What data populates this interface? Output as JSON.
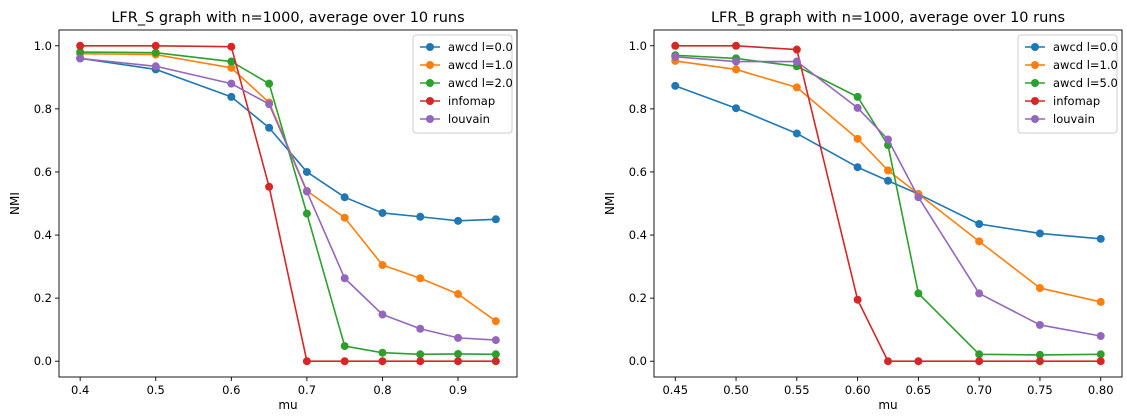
{
  "colors": {
    "series": [
      "#1f77b4",
      "#ff7f0e",
      "#2ca02c",
      "#d62728",
      "#9467bd"
    ],
    "axis": "#000000",
    "legend_border": "#cccccc"
  },
  "chart_data": [
    {
      "type": "line",
      "title": "LFR_S graph with n=1000, average over 10 runs",
      "xlabel": "mu",
      "ylabel": "NMI",
      "xlim": [
        0.372,
        0.978
      ],
      "ylim": [
        -0.05,
        1.05
      ],
      "xticks": [
        0.4,
        0.5,
        0.6,
        0.7,
        0.8,
        0.9
      ],
      "xtick_labels": [
        "0.4",
        "0.5",
        "0.6",
        "0.7",
        "0.8",
        "0.9"
      ],
      "yticks": [
        0.0,
        0.2,
        0.4,
        0.6,
        0.8,
        1.0
      ],
      "ytick_labels": [
        "0.0",
        "0.2",
        "0.4",
        "0.6",
        "0.8",
        "1.0"
      ],
      "grid": false,
      "legend_position": "top-right",
      "x": [
        0.4,
        0.5,
        0.6,
        0.65,
        0.7,
        0.75,
        0.8,
        0.85,
        0.9,
        0.95
      ],
      "series": [
        {
          "name": "awcd l=0.0",
          "values": [
            0.96,
            0.925,
            0.838,
            0.74,
            0.6,
            0.52,
            0.47,
            0.458,
            0.445,
            0.45
          ]
        },
        {
          "name": "awcd l=1.0",
          "values": [
            0.975,
            0.972,
            0.93,
            0.82,
            0.54,
            0.455,
            0.305,
            0.263,
            0.213,
            0.127
          ]
        },
        {
          "name": "awcd l=2.0",
          "values": [
            0.98,
            0.978,
            0.95,
            0.88,
            0.468,
            0.048,
            0.027,
            0.022,
            0.023,
            0.022
          ]
        },
        {
          "name": "infomap",
          "values": [
            1.0,
            1.0,
            0.997,
            0.553,
            0.0,
            0.0,
            0.0,
            0.0,
            0.0,
            0.0
          ]
        },
        {
          "name": "louvain",
          "values": [
            0.96,
            0.935,
            0.88,
            0.815,
            0.538,
            0.263,
            0.148,
            0.103,
            0.074,
            0.067
          ]
        }
      ]
    },
    {
      "type": "line",
      "title": "LFR_B graph with n=1000, average over 10 runs",
      "xlabel": "mu",
      "ylabel": "NMI",
      "xlim": [
        0.4325,
        0.8175
      ],
      "ylim": [
        -0.05,
        1.05
      ],
      "xticks": [
        0.45,
        0.5,
        0.55,
        0.6,
        0.65,
        0.7,
        0.75,
        0.8
      ],
      "xtick_labels": [
        "0.45",
        "0.50",
        "0.55",
        "0.60",
        "0.65",
        "0.70",
        "0.75",
        "0.80"
      ],
      "yticks": [
        0.0,
        0.2,
        0.4,
        0.6,
        0.8,
        1.0
      ],
      "ytick_labels": [
        "0.0",
        "0.2",
        "0.4",
        "0.6",
        "0.8",
        "1.0"
      ],
      "grid": false,
      "legend_position": "top-right",
      "x": [
        0.45,
        0.5,
        0.55,
        0.6,
        0.625,
        0.65,
        0.7,
        0.75,
        0.8
      ],
      "series": [
        {
          "name": "awcd l=0.0",
          "values": [
            0.873,
            0.802,
            0.722,
            0.615,
            0.572,
            0.53,
            0.435,
            0.405,
            0.388
          ]
        },
        {
          "name": "awcd l=1.0",
          "values": [
            0.952,
            0.925,
            0.868,
            0.705,
            0.605,
            0.53,
            0.38,
            0.232,
            0.188
          ]
        },
        {
          "name": "awcd l=5.0",
          "values": [
            0.97,
            0.96,
            0.935,
            0.838,
            0.685,
            0.215,
            0.022,
            0.02,
            0.022
          ]
        },
        {
          "name": "infomap",
          "values": [
            1.0,
            1.0,
            0.988,
            0.195,
            0.0,
            0.0,
            0.0,
            0.0,
            0.0
          ]
        },
        {
          "name": "louvain",
          "values": [
            0.965,
            0.95,
            0.95,
            0.803,
            0.703,
            0.52,
            0.215,
            0.115,
            0.08
          ]
        }
      ]
    }
  ]
}
